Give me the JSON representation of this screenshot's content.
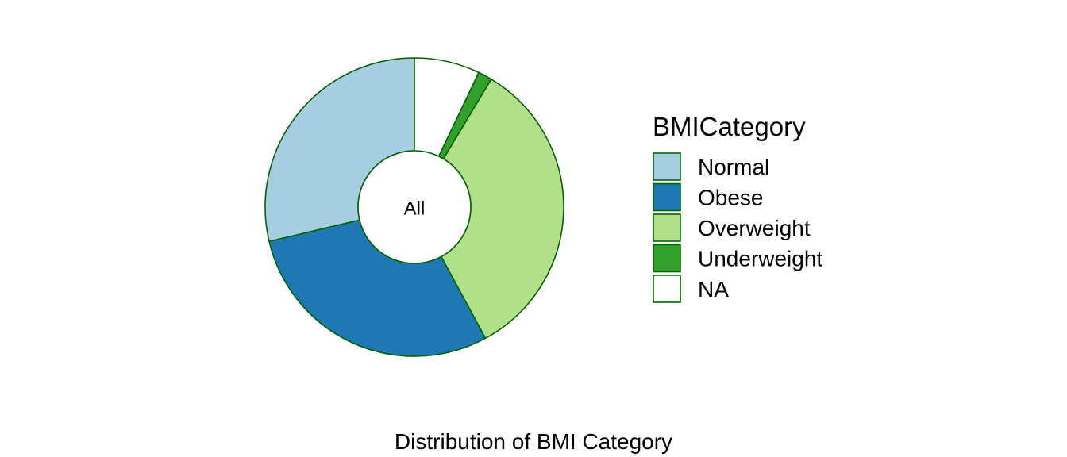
{
  "chart_data": {
    "type": "pie",
    "variant": "donut",
    "center_label": "All",
    "caption": "Distribution of BMI Category",
    "legend_title": "BMICategory",
    "legend_position": "right",
    "outline_color": "#006400",
    "slices": [
      {
        "label": "Normal",
        "value": 28.7,
        "color": "#A6CEE3"
      },
      {
        "label": "Obese",
        "value": 29.2,
        "color": "#1F78B4"
      },
      {
        "label": "Overweight",
        "value": 33.5,
        "color": "#B2DF8A"
      },
      {
        "label": "Underweight",
        "value": 1.5,
        "color": "#33A02C"
      },
      {
        "label": "NA",
        "value": 7.1,
        "color": "#FFFFFF"
      }
    ],
    "slice_draw_order": [
      "Normal",
      "Obese",
      "Overweight",
      "Underweight",
      "NA"
    ],
    "start_angle": "top",
    "direction": "counterclockwise"
  }
}
